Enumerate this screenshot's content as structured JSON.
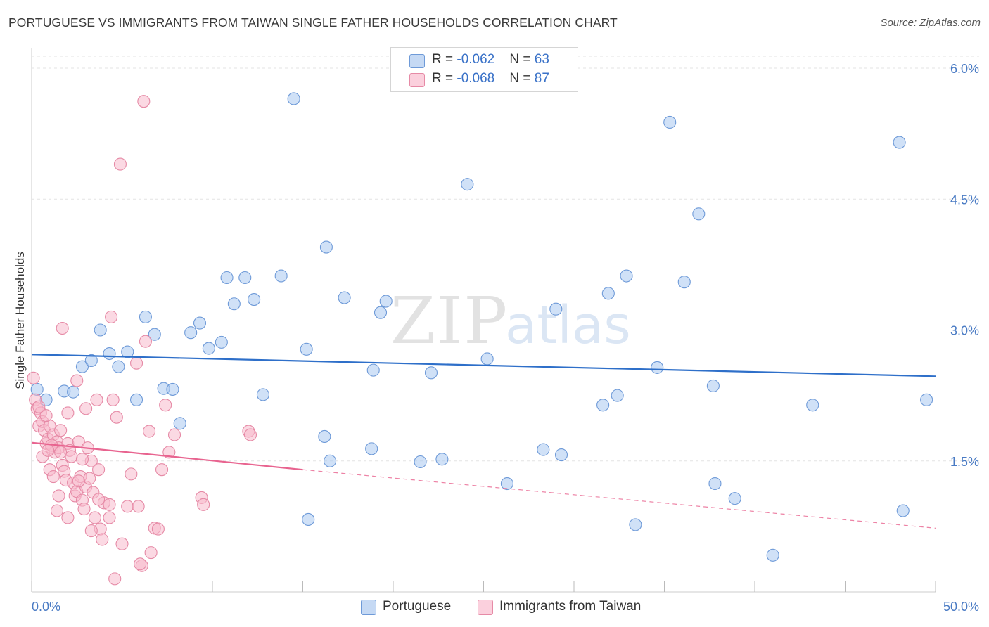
{
  "title": "PORTUGUESE VS IMMIGRANTS FROM TAIWAN SINGLE FATHER HOUSEHOLDS CORRELATION CHART",
  "source": "Source: ZipAtlas.com",
  "watermark": {
    "zip": "ZIP",
    "atlas": "atlas"
  },
  "legend": {
    "rows": [
      {
        "r_label": "R = ",
        "r_value": "-0.062",
        "n_label": "N = ",
        "n_value": "63",
        "color": "#a9c8f0",
        "border": "#6e9ad8"
      },
      {
        "r_label": "R = ",
        "r_value": "-0.068",
        "n_label": "N = ",
        "n_value": "87",
        "color": "#f7b9cc",
        "border": "#e68aa6"
      }
    ]
  },
  "bottom_legend": [
    "Portuguese",
    "Immigrants from Taiwan"
  ],
  "chart_data": {
    "type": "scatter",
    "title": "PORTUGUESE VS IMMIGRANTS FROM TAIWAN SINGLE FATHER HOUSEHOLDS CORRELATION CHART",
    "xlabel": "",
    "ylabel": "Single Father Households",
    "xlim": [
      0,
      50
    ],
    "ylim": [
      0,
      6.2
    ],
    "x_tick_labels": [
      "0.0%",
      "50.0%"
    ],
    "y_ticks": [
      1.5,
      3.0,
      4.5,
      6.0
    ],
    "y_tick_labels": [
      "1.5%",
      "3.0%",
      "4.5%",
      "6.0%"
    ],
    "grid": true,
    "series": [
      {
        "name": "Portuguese",
        "color": "#6e9ad8",
        "fill": "#a9c8f0",
        "trend": {
          "x": [
            0,
            50
          ],
          "y": [
            2.72,
            2.47
          ],
          "style": "solid",
          "color": "#2e6fc9"
        },
        "points": [
          [
            0.3,
            2.32
          ],
          [
            0.8,
            2.2
          ],
          [
            1.8,
            2.3
          ],
          [
            2.3,
            2.29
          ],
          [
            2.8,
            2.58
          ],
          [
            3.3,
            2.65
          ],
          [
            3.8,
            3.0
          ],
          [
            4.3,
            2.73
          ],
          [
            4.8,
            2.58
          ],
          [
            5.3,
            2.75
          ],
          [
            5.8,
            2.2
          ],
          [
            6.3,
            3.15
          ],
          [
            6.8,
            2.95
          ],
          [
            7.3,
            2.33
          ],
          [
            7.8,
            2.32
          ],
          [
            8.2,
            1.93
          ],
          [
            8.8,
            2.97
          ],
          [
            9.3,
            3.08
          ],
          [
            9.8,
            2.79
          ],
          [
            10.5,
            2.86
          ],
          [
            10.8,
            3.6
          ],
          [
            11.2,
            3.3
          ],
          [
            11.8,
            3.6
          ],
          [
            12.3,
            3.35
          ],
          [
            12.8,
            2.26
          ],
          [
            13.8,
            3.62
          ],
          [
            14.5,
            5.65
          ],
          [
            15.2,
            2.78
          ],
          [
            15.3,
            0.83
          ],
          [
            16.2,
            1.78
          ],
          [
            16.3,
            3.95
          ],
          [
            16.5,
            1.5
          ],
          [
            17.3,
            3.37
          ],
          [
            18.8,
            1.64
          ],
          [
            18.9,
            2.54
          ],
          [
            19.3,
            3.2
          ],
          [
            19.6,
            3.33
          ],
          [
            21.5,
            1.49
          ],
          [
            22.1,
            2.51
          ],
          [
            22.7,
            1.52
          ],
          [
            24.1,
            4.67
          ],
          [
            25.2,
            2.67
          ],
          [
            26.3,
            1.24
          ],
          [
            28.3,
            1.63
          ],
          [
            29.0,
            3.24
          ],
          [
            29.3,
            1.57
          ],
          [
            31.6,
            2.14
          ],
          [
            31.9,
            3.42
          ],
          [
            32.4,
            2.25
          ],
          [
            32.9,
            3.62
          ],
          [
            33.4,
            0.77
          ],
          [
            34.6,
            2.57
          ],
          [
            35.3,
            5.38
          ],
          [
            36.1,
            3.55
          ],
          [
            36.9,
            4.33
          ],
          [
            37.7,
            2.36
          ],
          [
            37.8,
            1.24
          ],
          [
            38.9,
            1.07
          ],
          [
            41.0,
            0.42
          ],
          [
            43.2,
            2.14
          ],
          [
            48.0,
            5.15
          ],
          [
            48.2,
            0.93
          ],
          [
            49.5,
            2.2
          ]
        ]
      },
      {
        "name": "Immigrants from Taiwan",
        "color": "#e68aa6",
        "fill": "#f7b9cc",
        "trend": {
          "x": [
            0,
            15
          ],
          "y": [
            1.71,
            1.4
          ],
          "style": "solid",
          "color": "#e8638f",
          "extended": {
            "x": [
              15,
              50
            ],
            "y": [
              1.4,
              0.73
            ],
            "style": "dashed"
          }
        },
        "points": [
          [
            0.1,
            2.45
          ],
          [
            0.2,
            2.2
          ],
          [
            0.3,
            2.1
          ],
          [
            0.4,
            1.9
          ],
          [
            0.5,
            2.05
          ],
          [
            0.6,
            1.95
          ],
          [
            0.7,
            1.85
          ],
          [
            0.8,
            1.7
          ],
          [
            0.9,
            1.75
          ],
          [
            1.0,
            1.9
          ],
          [
            1.1,
            1.65
          ],
          [
            1.2,
            1.8
          ],
          [
            1.3,
            1.6
          ],
          [
            1.4,
            1.72
          ],
          [
            1.5,
            1.65
          ],
          [
            1.6,
            1.85
          ],
          [
            1.7,
            1.45
          ],
          [
            1.8,
            1.38
          ],
          [
            1.9,
            1.28
          ],
          [
            2.0,
            1.7
          ],
          [
            2.1,
            1.62
          ],
          [
            2.2,
            1.55
          ],
          [
            2.3,
            1.25
          ],
          [
            2.4,
            1.1
          ],
          [
            2.5,
            1.15
          ],
          [
            2.6,
            1.72
          ],
          [
            2.7,
            1.32
          ],
          [
            2.8,
            1.05
          ],
          [
            2.9,
            0.95
          ],
          [
            3.0,
            1.2
          ],
          [
            3.1,
            1.65
          ],
          [
            3.2,
            1.3
          ],
          [
            3.3,
            1.5
          ],
          [
            3.4,
            1.14
          ],
          [
            3.5,
            0.85
          ],
          [
            3.6,
            2.2
          ],
          [
            3.7,
            1.4
          ],
          [
            3.8,
            0.72
          ],
          [
            3.9,
            0.6
          ],
          [
            4.0,
            1.02
          ],
          [
            4.3,
            0.85
          ],
          [
            4.4,
            3.15
          ],
          [
            4.5,
            2.2
          ],
          [
            4.7,
            2.0
          ],
          [
            4.9,
            4.9
          ],
          [
            5.0,
            0.55
          ],
          [
            5.3,
            0.98
          ],
          [
            5.5,
            1.35
          ],
          [
            5.8,
            2.62
          ],
          [
            6.1,
            0.3
          ],
          [
            6.2,
            5.62
          ],
          [
            6.3,
            2.87
          ],
          [
            6.5,
            1.84
          ],
          [
            6.8,
            0.73
          ],
          [
            7.0,
            0.72
          ],
          [
            7.2,
            1.4
          ],
          [
            7.4,
            2.14
          ],
          [
            7.6,
            1.6
          ],
          [
            7.9,
            1.8
          ],
          [
            9.4,
            1.08
          ],
          [
            9.5,
            1.0
          ],
          [
            12.0,
            1.84
          ],
          [
            12.1,
            1.8
          ],
          [
            0.8,
            2.02
          ],
          [
            2.0,
            2.05
          ],
          [
            2.5,
            2.42
          ],
          [
            3.0,
            2.1
          ],
          [
            0.6,
            1.55
          ],
          [
            1.0,
            1.4
          ],
          [
            1.5,
            1.1
          ],
          [
            2.0,
            0.85
          ],
          [
            0.4,
            2.12
          ],
          [
            4.6,
            0.15
          ],
          [
            6.0,
            0.32
          ],
          [
            6.6,
            0.45
          ],
          [
            5.9,
            0.98
          ],
          [
            4.3,
            1.0
          ],
          [
            3.3,
            0.7
          ],
          [
            1.6,
            1.6
          ],
          [
            1.1,
            1.68
          ],
          [
            2.6,
            1.27
          ],
          [
            3.7,
            1.06
          ],
          [
            1.2,
            1.32
          ],
          [
            1.7,
            3.02
          ],
          [
            0.9,
            1.62
          ],
          [
            2.8,
            1.52
          ],
          [
            1.4,
            0.93
          ]
        ]
      }
    ]
  }
}
